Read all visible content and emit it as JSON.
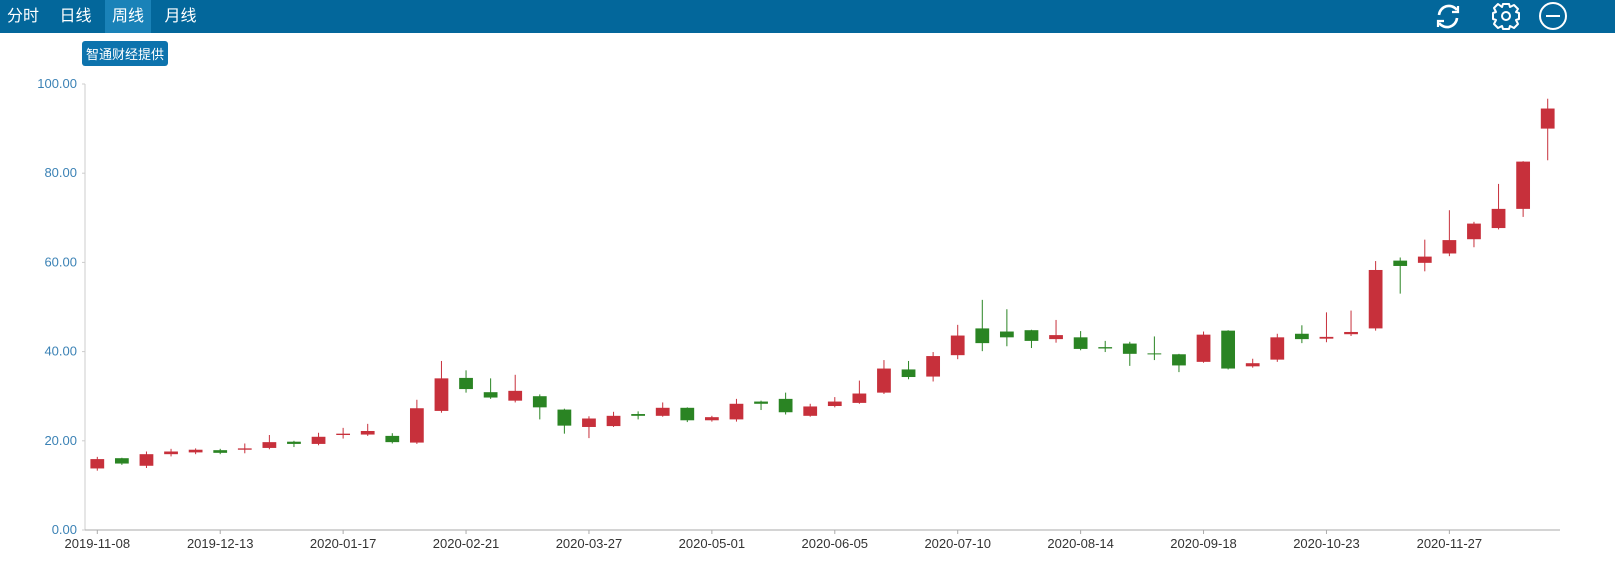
{
  "toolbar": {
    "tabs": [
      "分时",
      "日线",
      "周线",
      "月线"
    ],
    "active_tab": 2
  },
  "badge": "智通财经提供",
  "chart_data": {
    "type": "candlestick",
    "categories": [
      "2019-11-08",
      null,
      null,
      null,
      null,
      "2019-12-13",
      null,
      null,
      null,
      null,
      "2020-01-17",
      null,
      null,
      null,
      null,
      "2020-02-21",
      null,
      null,
      null,
      null,
      "2020-03-27",
      null,
      null,
      null,
      null,
      "2020-05-01",
      null,
      null,
      null,
      null,
      "2020-06-05",
      null,
      null,
      null,
      null,
      "2020-07-10",
      null,
      null,
      null,
      null,
      "2020-08-14",
      null,
      null,
      null,
      null,
      "2020-09-18",
      null,
      null,
      null,
      null,
      "2020-10-23",
      null,
      null,
      null,
      null,
      "2020-11-27",
      null,
      null,
      null,
      null
    ],
    "open": [
      13.8,
      16.1,
      14.4,
      17.0,
      17.4,
      17.9,
      18.0,
      18.4,
      19.8,
      19.3,
      21.3,
      21.4,
      21.1,
      19.6,
      26.7,
      34.1,
      30.9,
      29.0,
      30.0,
      27.0,
      23.1,
      23.3,
      26.0,
      25.6,
      27.4,
      24.6,
      24.8,
      28.8,
      29.4,
      25.6,
      27.8,
      28.5,
      30.8,
      36.0,
      34.4,
      39.2,
      45.2,
      44.5,
      44.8,
      42.8,
      43.2,
      41.0,
      41.8,
      39.6,
      39.4,
      37.7,
      44.7,
      36.7,
      38.2,
      44.0,
      42.9,
      43.9,
      45.2,
      60.4,
      59.9,
      62.0,
      65.2,
      67.7,
      72.0,
      90.0
    ],
    "high": [
      16.4,
      16.2,
      17.6,
      18.2,
      18.3,
      18.2,
      19.4,
      21.3,
      20.0,
      21.8,
      22.9,
      23.8,
      21.7,
      29.2,
      37.9,
      35.8,
      34.0,
      34.8,
      30.4,
      27.2,
      25.5,
      26.5,
      26.6,
      28.6,
      27.5,
      25.6,
      29.4,
      29.0,
      30.8,
      28.3,
      29.8,
      33.5,
      38.1,
      37.9,
      39.9,
      46.0,
      51.6,
      49.5,
      44.9,
      47.1,
      44.6,
      42.4,
      42.2,
      43.4,
      39.5,
      44.5,
      44.8,
      38.4,
      44.0,
      45.9,
      48.8,
      49.2,
      60.3,
      61.1,
      65.1,
      71.7,
      69.1,
      77.6,
      82.7,
      96.7
    ],
    "low": [
      13.3,
      14.6,
      13.9,
      16.5,
      17.0,
      17.0,
      17.2,
      18.1,
      18.6,
      19.0,
      20.5,
      21.1,
      19.4,
      19.3,
      26.3,
      30.8,
      29.4,
      28.6,
      24.8,
      21.6,
      20.6,
      23.1,
      24.8,
      25.4,
      24.2,
      24.3,
      24.3,
      26.9,
      25.9,
      25.4,
      27.5,
      28.3,
      30.5,
      33.8,
      33.3,
      38.3,
      40.1,
      41.2,
      40.8,
      42.0,
      40.3,
      39.9,
      36.8,
      38.1,
      35.4,
      37.5,
      36.0,
      36.4,
      37.7,
      41.9,
      42.1,
      43.5,
      44.7,
      53.0,
      58.0,
      61.4,
      63.4,
      67.4,
      70.2,
      82.9
    ],
    "close": [
      15.9,
      14.9,
      17.0,
      17.6,
      18.0,
      17.3,
      18.3,
      19.7,
      19.3,
      20.9,
      21.6,
      22.2,
      19.7,
      27.3,
      34.0,
      31.6,
      29.7,
      31.2,
      27.5,
      23.4,
      25.0,
      25.6,
      25.6,
      27.4,
      24.6,
      25.3,
      28.3,
      28.3,
      26.4,
      27.7,
      28.8,
      30.6,
      36.2,
      34.3,
      39.0,
      43.6,
      41.9,
      43.2,
      42.4,
      43.7,
      40.6,
      40.7,
      39.5,
      39.4,
      36.9,
      43.8,
      36.2,
      37.4,
      43.2,
      42.8,
      43.3,
      44.4,
      58.3,
      59.2,
      61.3,
      65.0,
      68.7,
      72.0,
      82.6,
      94.5
    ],
    "up_color": "#c7303b",
    "down_color": "#2a8423",
    "ylim": [
      0,
      100
    ],
    "yticks": [
      {
        "value": 0,
        "label": "0.00"
      },
      {
        "value": 20,
        "label": "20.00"
      },
      {
        "value": 40,
        "label": "40.00"
      },
      {
        "value": 60,
        "label": "60.00"
      },
      {
        "value": 80,
        "label": "80.00"
      },
      {
        "value": 100,
        "label": "100.00"
      }
    ],
    "grid": false
  }
}
